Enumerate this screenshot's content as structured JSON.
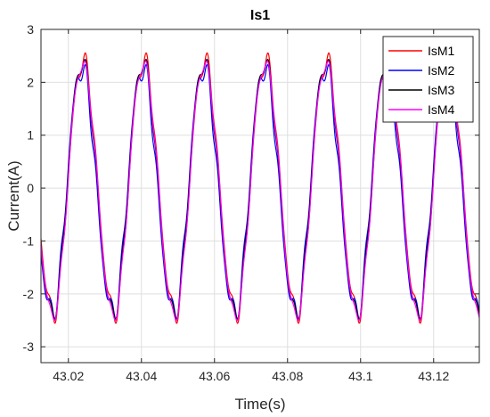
{
  "chart_data": {
    "type": "line",
    "title": "Is1",
    "xlabel": "Time(s)",
    "ylabel": "Current(A)",
    "xlim": [
      43.0125,
      43.1325
    ],
    "ylim": [
      -3.3,
      3
    ],
    "xticks": [
      43.02,
      43.04,
      43.06,
      43.08,
      43.1,
      43.12
    ],
    "xtick_labels": [
      "43.02",
      "43.04",
      "43.06",
      "43.08",
      "43.1",
      "43.12"
    ],
    "yticks": [
      -3,
      -2,
      -1,
      0,
      1,
      2,
      3
    ],
    "ytick_labels": [
      "-3",
      "-2",
      "-1",
      "0",
      "1",
      "2",
      "3"
    ],
    "grid": true,
    "legend_position": "top-right",
    "fundamental_frequency_hz": 60,
    "series": [
      {
        "name": "IsM1",
        "color": "#ff0000",
        "x": [
          43.0125,
          43.015,
          43.0175,
          43.02,
          43.0225,
          43.024,
          43.0275,
          43.03,
          43.0325,
          43.035,
          43.0375,
          43.0405,
          43.0425,
          43.045,
          43.0475,
          43.049,
          43.0525,
          43.055,
          43.0575,
          43.06,
          43.0625,
          43.0655,
          43.0675,
          43.07,
          43.0725,
          43.074,
          43.0775,
          43.08,
          43.0825,
          43.085,
          43.0875,
          43.0905,
          43.0925,
          43.095,
          43.0975,
          43.099,
          43.1025,
          43.105,
          43.1075,
          43.11,
          43.1125,
          43.1155,
          43.1175,
          43.12,
          43.1225,
          43.124,
          43.1275,
          43.13,
          43.1325
        ],
        "y": [
          -0.2,
          -1.9,
          -2.4,
          -0.9,
          1.5,
          2.3,
          1.3,
          -1.0,
          -2.4,
          -1.5,
          0.7,
          2.4,
          2.0,
          0.0,
          -2.0,
          -2.4,
          -1.0,
          1.6,
          2.6,
          1.5,
          -0.8,
          -2.4,
          -1.8,
          0.4,
          2.3,
          2.4,
          0.4,
          -1.8,
          -2.4,
          -0.8,
          1.5,
          2.4,
          1.6,
          -0.5,
          -2.1,
          -2.4,
          -0.4,
          1.9,
          2.3,
          0.8,
          -1.7,
          -2.3,
          -1.1,
          1.1,
          2.2,
          2.2,
          0.3,
          -1.9,
          -2.3
        ]
      },
      {
        "name": "IsM2",
        "color": "#0000ff",
        "x": [
          43.0125,
          43.015,
          43.0175,
          43.02,
          43.0225,
          43.024,
          43.0275,
          43.03,
          43.0325,
          43.035,
          43.0375,
          43.0405,
          43.0425,
          43.045,
          43.0475,
          43.049,
          43.0525,
          43.055,
          43.0575,
          43.06,
          43.0625,
          43.0655,
          43.0675,
          43.07,
          43.0725,
          43.074,
          43.0775,
          43.08,
          43.0825,
          43.085,
          43.0875,
          43.0905,
          43.0925,
          43.095,
          43.0975,
          43.099,
          43.1025,
          43.105,
          43.1075,
          43.11,
          43.1125,
          43.1155,
          43.1175,
          43.12,
          43.1225,
          43.124,
          43.1275,
          43.13,
          43.1325
        ],
        "y": [
          -0.3,
          -1.8,
          -2.3,
          -0.7,
          1.6,
          2.2,
          1.1,
          -1.2,
          -2.4,
          -1.3,
          0.9,
          2.2,
          1.7,
          -0.3,
          -2.2,
          -2.3,
          -0.8,
          1.7,
          2.2,
          1.0,
          -1.2,
          -2.4,
          -1.6,
          0.6,
          2.4,
          2.3,
          0.1,
          -2.0,
          -2.3,
          -0.6,
          1.7,
          2.2,
          1.3,
          -0.8,
          -2.3,
          -2.3,
          -0.2,
          2.0,
          2.1,
          0.5,
          -2.0,
          -2.3,
          -0.8,
          1.3,
          2.1,
          2.0,
          -0.1,
          -2.1,
          -2.2
        ]
      },
      {
        "name": "IsM3",
        "color": "#000000",
        "x": [
          43.0125,
          43.015,
          43.0175,
          43.02,
          43.0225,
          43.024,
          43.0275,
          43.03,
          43.0325,
          43.035,
          43.0375,
          43.0405,
          43.0425,
          43.045,
          43.0475,
          43.049,
          43.0525,
          43.055,
          43.0575,
          43.06,
          43.0625,
          43.0655,
          43.0675,
          43.07,
          43.0725,
          43.074,
          43.0775,
          43.08,
          43.0825,
          43.085,
          43.0875,
          43.0905,
          43.0925,
          43.095,
          43.0975,
          43.099,
          43.1025,
          43.105,
          43.1075,
          43.11,
          43.1125,
          43.1155,
          43.1175,
          43.12,
          43.1225,
          43.124,
          43.1275,
          43.13,
          43.1325
        ],
        "y": [
          -0.2,
          -1.9,
          -2.4,
          -0.8,
          1.6,
          2.3,
          1.2,
          -1.1,
          -2.4,
          -1.4,
          0.8,
          2.5,
          1.9,
          -0.1,
          -2.1,
          -2.5,
          -0.9,
          1.7,
          2.4,
          1.3,
          -1.0,
          -2.4,
          -1.7,
          0.5,
          2.4,
          2.4,
          0.3,
          -1.9,
          -2.3,
          -0.7,
          1.6,
          2.3,
          1.5,
          -0.6,
          -2.2,
          -2.3,
          -0.3,
          1.9,
          2.2,
          0.7,
          -1.8,
          -2.3,
          -1.0,
          1.2,
          2.2,
          2.1,
          0.1,
          -2.0,
          -2.3
        ]
      },
      {
        "name": "IsM4",
        "color": "#ff00ff",
        "x": [
          43.0125,
          43.015,
          43.0175,
          43.02,
          43.0225,
          43.024,
          43.0275,
          43.03,
          43.0325,
          43.035,
          43.0375,
          43.0405,
          43.0425,
          43.045,
          43.0475,
          43.049,
          43.0525,
          43.055,
          43.0575,
          43.06,
          43.0625,
          43.0655,
          43.0675,
          43.07,
          43.0725,
          43.074,
          43.0775,
          43.08,
          43.0825,
          43.085,
          43.0875,
          43.0905,
          43.0925,
          43.095,
          43.0975,
          43.099,
          43.1025,
          43.105,
          43.1075,
          43.11,
          43.1125,
          43.1155,
          43.1175,
          43.12,
          43.1225,
          43.124,
          43.1275,
          43.13,
          43.1325
        ],
        "y": [
          -0.3,
          -2.0,
          -2.5,
          -1.0,
          1.5,
          2.5,
          1.3,
          -1.0,
          -2.4,
          -1.5,
          0.8,
          2.3,
          1.9,
          0.0,
          -2.1,
          -2.7,
          -1.0,
          1.6,
          2.3,
          1.4,
          -0.9,
          -2.4,
          -1.8,
          0.4,
          2.3,
          2.5,
          0.3,
          -1.9,
          -2.4,
          -0.8,
          1.5,
          2.3,
          1.5,
          -0.6,
          -2.2,
          -2.4,
          -0.4,
          1.9,
          2.2,
          0.8,
          -1.8,
          -2.4,
          -1.1,
          1.1,
          2.2,
          2.2,
          0.2,
          -2.0,
          -2.3
        ]
      }
    ]
  }
}
